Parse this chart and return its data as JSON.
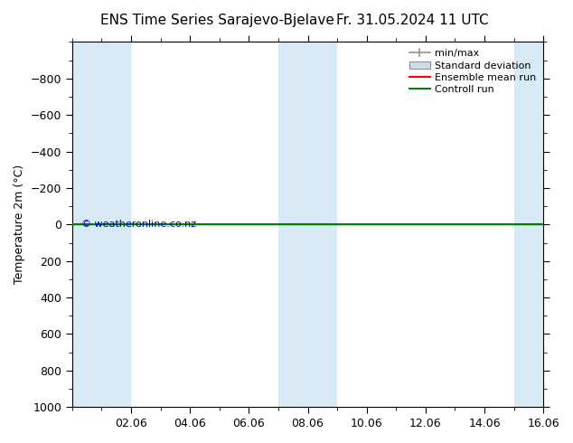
{
  "title": "ENS Time Series Sarajevo-Bjelave",
  "title_right": "Fr. 31.05.2024 11 UTC",
  "ylabel": "Temperature 2m (°C)",
  "watermark": "© weatheronline.co.nz",
  "ylim": [
    -1000,
    1000
  ],
  "yticks": [
    -800,
    -600,
    -400,
    -200,
    0,
    200,
    400,
    600,
    800,
    1000
  ],
  "x_tick_labels": [
    "02.06",
    "04.06",
    "06.06",
    "08.06",
    "10.06",
    "12.06",
    "14.06",
    "16.06"
  ],
  "x_tick_positions": [
    2,
    4,
    6,
    8,
    10,
    12,
    14,
    16
  ],
  "x_minor_positions": [
    1,
    2,
    3,
    4,
    5,
    6,
    7,
    8,
    9,
    10,
    11,
    12,
    13,
    14,
    15,
    16
  ],
  "xlim": [
    0,
    16
  ],
  "shaded_intervals": [
    [
      0,
      1
    ],
    [
      1,
      2
    ],
    [
      7,
      8
    ],
    [
      8,
      9
    ],
    [
      15,
      16
    ]
  ],
  "control_run_color": "#008000",
  "ensemble_mean_color": "#ff0000",
  "minmax_color": "#909090",
  "stddev_color": "#ccdde8",
  "background_color": "#ffffff",
  "plot_bg_color": "#ffffff",
  "shaded_color": "#d8eaf5",
  "legend_labels": [
    "min/max",
    "Standard deviation",
    "Ensemble mean run",
    "Controll run"
  ],
  "title_fontsize": 11,
  "axis_fontsize": 9,
  "tick_fontsize": 9,
  "watermark_color": "#0000cc"
}
